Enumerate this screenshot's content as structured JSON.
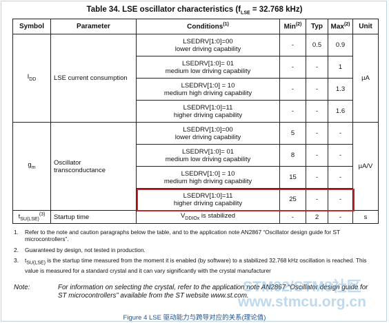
{
  "title": {
    "pre": "Table 34. LSE oscillator characteristics (f",
    "sub": "LSE",
    "post": " = 32.768 kHz)"
  },
  "table": {
    "columns": [
      {
        "text": "Symbol"
      },
      {
        "text": "Parameter"
      },
      {
        "text": "Conditions",
        "sup": "(1)"
      },
      {
        "text": "Min",
        "sup": "(2)"
      },
      {
        "text": "Typ"
      },
      {
        "text": "Max",
        "sup": "(2)"
      },
      {
        "text": "Unit"
      }
    ],
    "groups": [
      {
        "symbol": {
          "main": "I",
          "sub": "DD"
        },
        "parameter": [
          "LSE current consumption"
        ],
        "unit": "µA",
        "rows": [
          {
            "condition": [
              "LSEDRV[1:0]=00",
              "lower driving capability"
            ],
            "min": "-",
            "typ": "0.5",
            "max": "0.9"
          },
          {
            "condition": [
              "LSEDRV[1:0]= 01",
              "medium low driving capability"
            ],
            "min": "-",
            "typ": "-",
            "max": "1"
          },
          {
            "condition": [
              "LSEDRV[1:0] = 10",
              "medium high driving capability"
            ],
            "min": "-",
            "typ": "-",
            "max": "1.3"
          },
          {
            "condition": [
              "LSEDRV[1:0]=11",
              "higher driving capability"
            ],
            "min": "-",
            "typ": "-",
            "max": "1.6"
          }
        ]
      },
      {
        "symbol": {
          "main": "g",
          "sub": "m"
        },
        "parameter": [
          "Oscillator",
          "transconductance"
        ],
        "unit": "µA/V",
        "rows": [
          {
            "condition": [
              "LSEDRV[1:0]=00",
              "lower driving capability"
            ],
            "min": "5",
            "typ": "-",
            "max": "-"
          },
          {
            "condition": [
              "LSEDRV[1:0]= 01",
              "medium low driving capability"
            ],
            "min": "8",
            "typ": "-",
            "max": "-"
          },
          {
            "condition": [
              "LSEDRV[1:0] = 10",
              "medium high driving capability"
            ],
            "min": "15",
            "typ": "-",
            "max": "-"
          },
          {
            "condition": [
              "LSEDRV[1:0]=11",
              "higher driving capability"
            ],
            "min": "25",
            "typ": "-",
            "max": "-"
          }
        ]
      }
    ],
    "startup": {
      "symbol": {
        "main": "t",
        "sub": "SU(LSE)",
        "sup": "(3)"
      },
      "parameter": "Startup time",
      "condition": {
        "main": "V",
        "sub": "DDIOx",
        "post": " is stabilized"
      },
      "min": "-",
      "typ": "2",
      "max": "-",
      "unit": "s"
    }
  },
  "notes": [
    {
      "num": "1.",
      "text": "Refer to the note and caution paragraphs below the table, and to the application note AN2867 “Oscillator design guide for ST microcontrollers”."
    },
    {
      "num": "2.",
      "text": "Guaranteed by design, not tested in production."
    },
    {
      "num": "3.",
      "main": "t",
      "sub": "SU(LSE)",
      "text": " is the startup time measured from the moment it is enabled (by software) to a stabilized 32.768 kHz oscillation is reached. This value is measured for a standard crystal and it can vary significantly with the crystal manufacturer"
    }
  ],
  "note": {
    "label": "Note:",
    "text": "For information on selecting the crystal, refer to the application note AN2867 “Oscillator design guide for ST microcontrollers” available from the ST website www.st.com."
  },
  "watermark": {
    "line1": "STM32/STM8社区",
    "line2": "www.stmcu.org.cn"
  },
  "caption": "Figure 4 LSE 驱动能力与跨导对应的关系(理论值)"
}
